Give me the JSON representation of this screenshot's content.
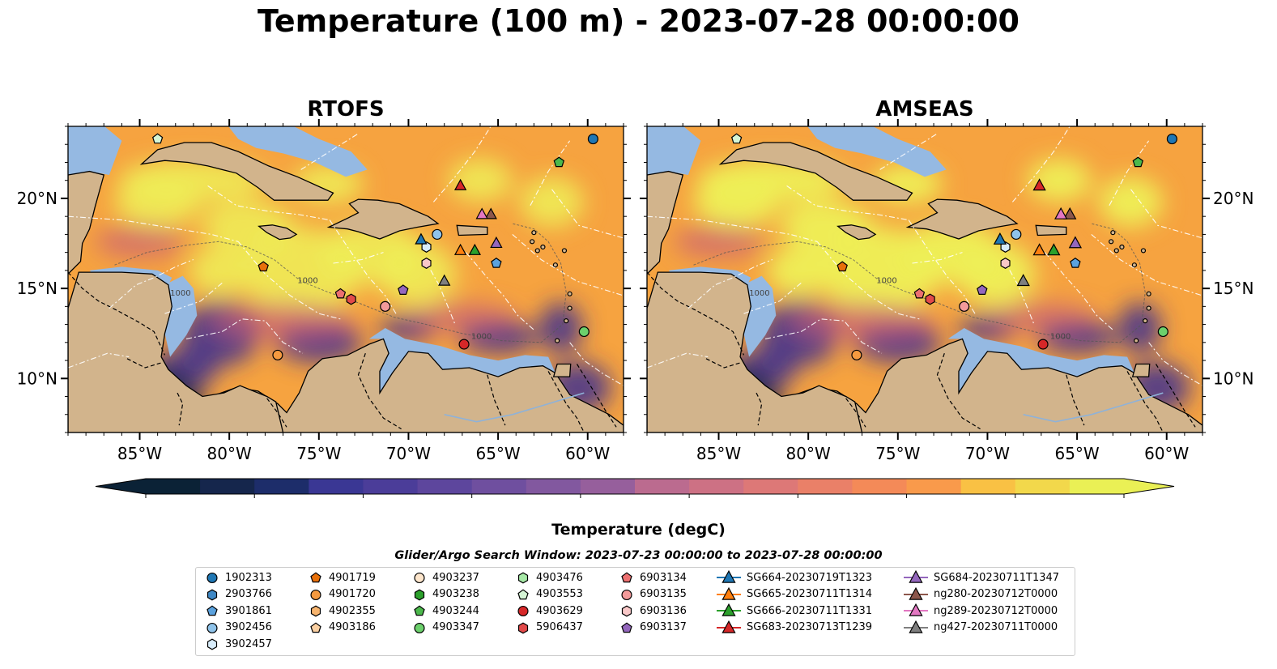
{
  "title": "Temperature (100 m) - 2023-07-28 00:00:00",
  "panels": [
    {
      "name": "RTOFS",
      "variant": "rtofs"
    },
    {
      "name": "AMSEAS",
      "variant": "amseas"
    }
  ],
  "map": {
    "lon_range": [
      -89.0,
      -58.0
    ],
    "lat_range": [
      7.0,
      24.0
    ],
    "lon_ticks": [
      {
        "value": -85,
        "label": "85°W"
      },
      {
        "value": -80,
        "label": "80°W"
      },
      {
        "value": -75,
        "label": "75°W"
      },
      {
        "value": -70,
        "label": "70°W"
      },
      {
        "value": -65,
        "label": "65°W"
      },
      {
        "value": -60,
        "label": "60°W"
      }
    ],
    "lat_ticks": [
      {
        "value": 20,
        "label": "20°N"
      },
      {
        "value": 15,
        "label": "15°N"
      },
      {
        "value": 10,
        "label": "10°N"
      }
    ],
    "contour_label": "1000",
    "land_color": "#d2b48c",
    "shelf_color": "#95b9e2",
    "layout_note_colors": {
      "warm": "#eef057",
      "hot": "#f6a340",
      "mid": "#c95f78",
      "cool": "#3d2f8f",
      "cold": "#0f1f3a"
    }
  },
  "colorbar": {
    "label": "Temperature (degC)",
    "min": 18,
    "max": 27,
    "step": 0.5,
    "ticks": [
      18,
      19,
      20,
      21,
      22,
      23,
      24,
      25,
      26,
      27
    ],
    "colors": [
      "#0b2236",
      "#15264c",
      "#1d2d6a",
      "#2a3283",
      "#3a3794",
      "#4b3d99",
      "#5d469d",
      "#6f4f9f",
      "#82589f",
      "#965f9c",
      "#a96697",
      "#bb6b8f",
      "#cd7184",
      "#dd7877",
      "#ea8068",
      "#f48a58",
      "#f99a4b",
      "#fbac43",
      "#f9c144",
      "#f2d84b",
      "#eaf055"
    ]
  },
  "search_window": "Glider/Argo Search Window: 2023-07-23 00:00:00 to 2023-07-28 00:00:00",
  "platforms": [
    {
      "id": "1902313",
      "marker": "circle",
      "color": "#1f77b4",
      "lon": -59.7,
      "lat": 23.3
    },
    {
      "id": "2903766",
      "marker": "hexagon",
      "color": "#3f88c5",
      "lon": -86.5,
      "lat": 24.4
    },
    {
      "id": "3901861",
      "marker": "pentagon",
      "color": "#5ba2de",
      "lon": -65.1,
      "lat": 16.4
    },
    {
      "id": "3902456",
      "marker": "circle",
      "color": "#8fc3ea",
      "lon": -68.4,
      "lat": 18.0
    },
    {
      "id": "3902457",
      "marker": "hexagon",
      "color": "#d8ecfa",
      "lon": -69.0,
      "lat": 17.3
    },
    {
      "id": "4901719",
      "marker": "pentagon",
      "color": "#e8700a",
      "lon": -78.1,
      "lat": 16.2
    },
    {
      "id": "4901720",
      "marker": "circle",
      "color": "#f59a40",
      "lon": -77.3,
      "lat": 11.3
    },
    {
      "id": "4902355",
      "marker": "hexagon",
      "color": "#f7b46e",
      "lon": -81.5,
      "lat": 25.0
    },
    {
      "id": "4903186",
      "marker": "pentagon",
      "color": "#fbd0a2",
      "lon": -60.0,
      "lat": 25.0
    },
    {
      "id": "4903237",
      "marker": "circle",
      "color": "#fde6cc",
      "lon": -79.0,
      "lat": 25.0
    },
    {
      "id": "4903238",
      "marker": "hexagon",
      "color": "#2ca02c",
      "lon": -76.5,
      "lat": 25.0
    },
    {
      "id": "4903244",
      "marker": "pentagon",
      "color": "#4cb84c",
      "lon": -61.6,
      "lat": 22.0
    },
    {
      "id": "4903347",
      "marker": "circle",
      "color": "#6cd06c",
      "lon": -60.2,
      "lat": 12.6
    },
    {
      "id": "4903476",
      "marker": "hexagon",
      "color": "#a6e8a6",
      "lon": -66.5,
      "lat": 25.0
    },
    {
      "id": "4903553",
      "marker": "pentagon",
      "color": "#d6f5d6",
      "lon": -84.0,
      "lat": 23.3
    },
    {
      "id": "4903629",
      "marker": "circle",
      "color": "#d62728",
      "lon": -66.9,
      "lat": 11.9
    },
    {
      "id": "5906437",
      "marker": "hexagon",
      "color": "#e24a4a",
      "lon": -73.2,
      "lat": 14.4
    },
    {
      "id": "6903134",
      "marker": "pentagon",
      "color": "#ec7070",
      "lon": -73.8,
      "lat": 14.7
    },
    {
      "id": "6903135",
      "marker": "circle",
      "color": "#f39a9a",
      "lon": -71.3,
      "lat": 14.0
    },
    {
      "id": "6903136",
      "marker": "hexagon",
      "color": "#f9c8c8",
      "lon": -69.0,
      "lat": 16.4
    },
    {
      "id": "6903137",
      "marker": "pentagon",
      "color": "#9467bd",
      "lon": -70.3,
      "lat": 14.9
    },
    {
      "id": "SG664-20230719T1323",
      "marker": "triangle",
      "color": "#1f77b4",
      "lon": -69.3,
      "lat": 17.7
    },
    {
      "id": "SG665-20230711T1314",
      "marker": "triangle",
      "color": "#ff7f0e",
      "lon": -67.1,
      "lat": 17.1
    },
    {
      "id": "SG666-20230711T1331",
      "marker": "triangle",
      "color": "#2ca02c",
      "lon": -66.3,
      "lat": 17.1
    },
    {
      "id": "SG683-20230713T1239",
      "marker": "triangle",
      "color": "#d62728",
      "lon": -67.1,
      "lat": 20.7
    },
    {
      "id": "SG684-20230711T1347",
      "marker": "triangle",
      "color": "#9467bd",
      "lon": -65.1,
      "lat": 17.5
    },
    {
      "id": "ng280-20230712T0000",
      "marker": "triangle",
      "color": "#8c564b",
      "lon": -65.4,
      "lat": 19.1
    },
    {
      "id": "ng289-20230712T0000",
      "marker": "triangle",
      "color": "#e377c2",
      "lon": -65.9,
      "lat": 19.1
    },
    {
      "id": "ng427-20230711T0000",
      "marker": "triangle",
      "color": "#7f7f7f",
      "lon": -68.0,
      "lat": 15.4
    }
  ]
}
